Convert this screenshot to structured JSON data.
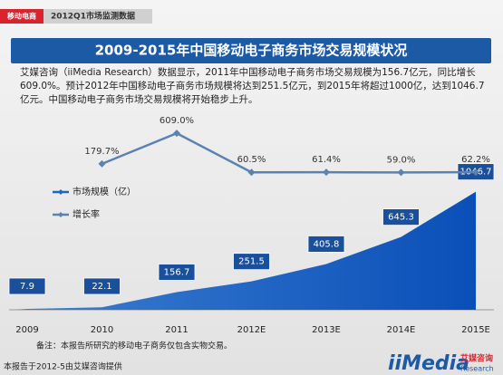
{
  "tag": "移动电商",
  "report": "2012Q1市场监测数据",
  "description": "艾媒咨询（iiMedia Research）数据显示，2011年中国移动电子商务市场交易规模为156.7亿元，同比增长609.0%。预计2012年中国移动电子商务市场规模将达到251.5亿元，到2015年将超过1000亿，达到1046.7亿元。中国移动电子商务市场交易规模将开始稳步上升。",
  "note": "备注：本报告所研究的移动电子商务仅包含实物交易。",
  "source": "本报告于2012-5由艾媒咨询提供",
  "logo": {
    "brand": "iiMedia",
    "name_cn": "艾媒咨询",
    "name_en": "Research"
  },
  "chart_data": {
    "type": "area-line",
    "title": "2009-2015年中国移动电子商务市场交易规模状况",
    "categories": [
      "2009",
      "2010",
      "2011",
      "2012E",
      "2013E",
      "2014E",
      "2015E"
    ],
    "series": [
      {
        "name": "市场规模（亿）",
        "color": "#1f66c2",
        "values": [
          7.9,
          22.1,
          156.7,
          251.5,
          405.8,
          645.3,
          1046.7
        ]
      },
      {
        "name": "增长率",
        "color": "#5b82b0",
        "axis": "y2",
        "values": [
          null,
          179.7,
          609.0,
          60.5,
          61.4,
          59.0,
          62.2
        ],
        "value_labels": [
          null,
          "179.7%",
          "609.0%",
          "60.5%",
          "61.4%",
          "59.0%",
          "62.2%"
        ]
      }
    ],
    "ylim": [
      0,
      1100
    ],
    "y2lim": [
      0,
      700
    ],
    "legend": "left"
  }
}
